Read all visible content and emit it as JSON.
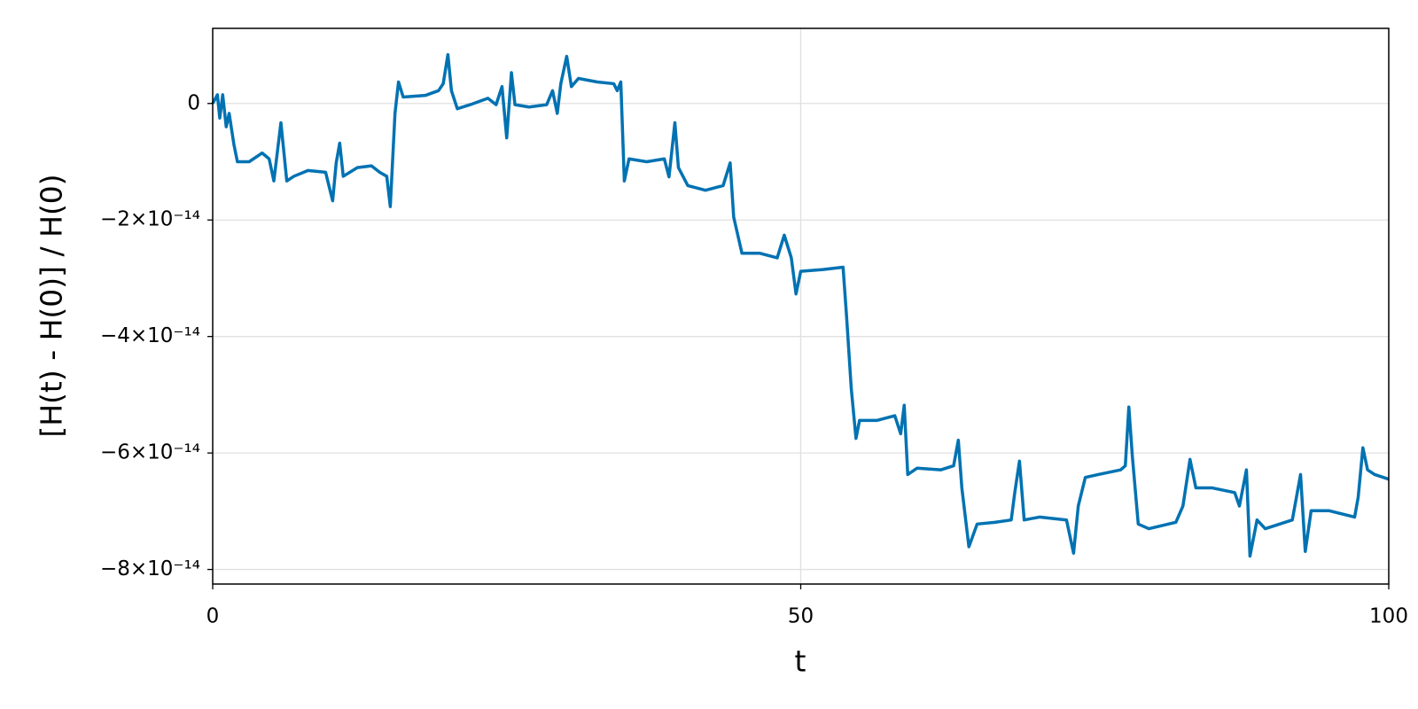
{
  "chart_data": {
    "type": "line",
    "xlabel": "t",
    "ylabel": "[H(t) - H(0)] / H(0)",
    "x": [
      0,
      0.4,
      0.6,
      0.85,
      1.15,
      1.4,
      1.8,
      2.1,
      3.1,
      4.2,
      4.8,
      5.2,
      5.8,
      6.3,
      6.9,
      8.1,
      9.6,
      10.2,
      10.5,
      10.8,
      11.1,
      12.3,
      13.5,
      14.2,
      14.8,
      15.1,
      15.5,
      15.8,
      16.2,
      18.1,
      19.2,
      19.6,
      20,
      20.3,
      20.8,
      21.9,
      23.4,
      24.1,
      24.6,
      25,
      25.4,
      25.7,
      26.9,
      28.4,
      28.9,
      29.3,
      29.6,
      30.1,
      30.5,
      31.1,
      32.7,
      34.1,
      34.4,
      34.7,
      35,
      35.4,
      36.9,
      38.4,
      38.8,
      39.3,
      39.6,
      40.4,
      41.9,
      43.4,
      44,
      44.3,
      45,
      46.5,
      48,
      48.6,
      49.2,
      49.6,
      50,
      51.9,
      53.6,
      53.9,
      54.3,
      54.7,
      55,
      56.5,
      58,
      58.5,
      58.8,
      59.1,
      59.9,
      61.9,
      63,
      63.4,
      63.7,
      64.3,
      65,
      66.5,
      67.9,
      68.2,
      68.6,
      69,
      70.3,
      72.6,
      73.2,
      73.6,
      74.2,
      75.3,
      77.2,
      77.6,
      77.9,
      78.2,
      78.7,
      79.6,
      81.9,
      82.5,
      83.1,
      83.6,
      85,
      86.9,
      87.3,
      87.9,
      88.2,
      88.8,
      89.5,
      91.8,
      92.5,
      92.9,
      93.4,
      94.9,
      97.1,
      97.4,
      97.8,
      98.2,
      98.8,
      100
    ],
    "values": [
      0,
      1.5e-15,
      -2.5e-15,
      1.5e-15,
      -4e-15,
      -1.7e-15,
      -7e-15,
      -1e-14,
      -1e-14,
      -8.5e-15,
      -9.5e-15,
      -1.33e-14,
      -3.3e-15,
      -1.33e-14,
      -1.25e-14,
      -1.15e-14,
      -1.18e-14,
      -1.67e-14,
      -1.02e-14,
      -6.8e-15,
      -1.25e-14,
      -1.1e-14,
      -1.07e-14,
      -1.18e-14,
      -1.25e-14,
      -1.77e-14,
      -1.7e-15,
      3.7e-15,
      1.1e-15,
      1.4e-15,
      2.2e-15,
      3.4e-15,
      8.4e-15,
      2.2e-15,
      -9e-16,
      -2e-16,
      9e-16,
      -2e-16,
      2.9e-15,
      -5.9e-15,
      5.3e-15,
      -2e-16,
      -6e-16,
      -2e-16,
      2.2e-15,
      -1.7e-15,
      3.4e-15,
      8.1e-15,
      2.9e-15,
      4.3e-15,
      3.7e-15,
      3.4e-15,
      2.2e-15,
      3.7e-15,
      -1.33e-14,
      -9.5e-15,
      -1e-14,
      -9.5e-15,
      -1.26e-14,
      -3.3e-15,
      -1.1e-14,
      -1.41e-14,
      -1.49e-14,
      -1.41e-14,
      -1.02e-14,
      -1.95e-14,
      -2.57e-14,
      -2.57e-14,
      -2.65e-14,
      -2.26e-14,
      -2.65e-14,
      -3.27e-14,
      -2.88e-14,
      -2.85e-14,
      -2.81e-14,
      -3.66e-14,
      -4.9e-14,
      -5.75e-14,
      -5.44e-14,
      -5.44e-14,
      -5.36e-14,
      -5.67e-14,
      -5.18e-14,
      -6.37e-14,
      -6.26e-14,
      -6.29e-14,
      -6.22e-14,
      -5.78e-14,
      -6.6e-14,
      -7.61e-14,
      -7.22e-14,
      -7.19e-14,
      -7.15e-14,
      -6.68e-14,
      -6.14e-14,
      -7.15e-14,
      -7.1e-14,
      -7.15e-14,
      -7.72e-14,
      -6.91e-14,
      -6.42e-14,
      -6.37e-14,
      -6.29e-14,
      -6.22e-14,
      -5.21e-14,
      -6.06e-14,
      -7.22e-14,
      -7.3e-14,
      -7.19e-14,
      -6.91e-14,
      -6.11e-14,
      -6.6e-14,
      -6.6e-14,
      -6.68e-14,
      -6.91e-14,
      -6.29e-14,
      -7.77e-14,
      -7.15e-14,
      -7.3e-14,
      -7.15e-14,
      -6.37e-14,
      -7.69e-14,
      -6.99e-14,
      -6.99e-14,
      -7.1e-14,
      -6.76e-14,
      -5.91e-14,
      -6.29e-14,
      -6.37e-14,
      -6.45e-14
    ],
    "color": "#0072b2",
    "xlim": [
      0,
      100
    ],
    "xticks": [
      0,
      50,
      100
    ],
    "ylim": [
      -8.25e-14,
      1.29e-14
    ],
    "yticks": [
      0,
      {
        "value": -2e-14,
        "label": "−2×10⁻¹⁴"
      },
      {
        "value": -4e-14,
        "label": "−4×10⁻¹⁴"
      },
      {
        "value": -6e-14,
        "label": "−6×10⁻¹⁴"
      },
      {
        "value": -8e-14,
        "label": "−8×10⁻¹⁴"
      }
    ],
    "grid": true
  }
}
